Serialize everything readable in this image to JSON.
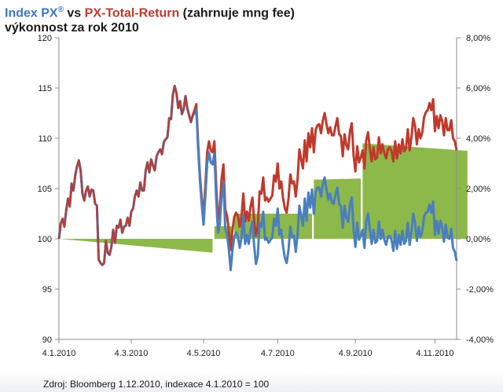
{
  "title": {
    "px_name": "Index PX",
    "px_reg": "®",
    "vs": " vs ",
    "tr_name": "PX-Total-Return",
    "tr_note": " (zahrnuje mng fee)",
    "line2": "výkonnost za rok 2010"
  },
  "source": "Zdroj: Bloomberg 1.12.2010, indexace 4.1.2010 = 100",
  "colors": {
    "px": "#4a7ebf",
    "tr": "#c0392b",
    "diff": "#8db84a",
    "axis": "#8c8c8c"
  },
  "chart_data": {
    "type": "line",
    "x_ticks": [
      "4.1.2010",
      "4.3.2010",
      "4.5.2010",
      "4.7.2010",
      "4.9.2010",
      "4.11.2010"
    ],
    "x_tick_index": [
      0,
      40,
      80,
      121,
      164,
      208
    ],
    "y_left": {
      "min": 90,
      "max": 120,
      "ticks": [
        90,
        95,
        100,
        105,
        110,
        115,
        120
      ]
    },
    "y_right": {
      "min": -4,
      "max": 8,
      "ticks": [
        "-4,00%",
        "-2,00%",
        "0,00%",
        "2,00%",
        "4,00%",
        "6,00%",
        "8,00%"
      ]
    },
    "series": [
      {
        "key": "px",
        "axis": "left",
        "values": [
          100.0,
          101.5,
          102.0,
          101.2,
          102.8,
          104.0,
          103.2,
          105.5,
          104.8,
          106.3,
          107.2,
          107.8,
          106.8,
          104.5,
          103.8,
          104.8,
          105.2,
          104.2,
          104.9,
          104.8,
          103.5,
          103.3,
          97.9,
          97.6,
          97.4,
          97.6,
          99.8,
          98.6,
          98.4,
          99.2,
          100.9,
          99.6,
          101.3,
          101.1,
          101.9,
          100.6,
          101.2,
          101.3,
          102.1,
          101.3,
          102.7,
          103.0,
          104.2,
          104.8,
          104.2,
          105.6,
          104.8,
          104.8,
          106.8,
          107.6,
          106.6,
          107.9,
          107.3,
          106.8,
          108.2,
          108.6,
          108.9,
          108.4,
          109.6,
          109.9,
          110.1,
          112.0,
          111.9,
          114.3,
          115.2,
          114.5,
          113.0,
          113.7,
          112.4,
          112.9,
          114.2,
          113.0,
          112.3,
          111.6,
          112.2,
          112.5,
          112.9,
          109.0,
          105.8,
          103.4,
          101.4,
          104.3,
          107.5,
          108.6,
          107.6,
          107.4,
          108.5,
          104.0,
          100.6,
          101.5,
          104.3,
          105.6,
          101.0,
          100.4,
          98.9,
          96.9,
          98.9,
          100.2,
          100.6,
          100.2,
          99.1,
          100.1,
          102.3,
          99.5,
          100.4,
          99.5,
          100.9,
          101.7,
          99.3,
          97.5,
          98.3,
          101.6,
          101.2,
          102.7,
          99.9,
          100.1,
          99.6,
          99.9,
          100.1,
          102.0,
          101.3,
          103.0,
          100.4,
          100.9,
          99.2,
          98.1,
          97.6,
          98.9,
          101.2,
          100.2,
          100.3,
          98.7,
          100.4,
          103.3,
          102.3,
          101.3,
          104.0,
          101.8,
          104.6,
          103.1,
          104.9,
          102.5,
          104.7,
          105.1,
          105.1,
          104.2,
          105.4,
          106.1,
          104.9,
          103.9,
          104.5,
          103.6,
          103.5,
          104.4,
          105.1,
          103.5,
          103.2,
          101.1,
          103.3,
          102.1,
          101.7,
          103.4,
          104.1,
          100.9,
          99.2,
          101.6,
          99.9,
          100.3,
          100.9,
          99.1,
          101.8,
          102.5,
          100.9,
          99.5,
          100.9,
          99.6,
          99.8,
          101.7,
          100.0,
          100.9,
          99.9,
          99.4,
          100.2,
          100.3,
          99.9,
          98.8,
          100.8,
          99.0,
          100.4,
          99.4,
          100.8,
          99.5,
          99.8,
          101.6,
          99.4,
          100.7,
          102.5,
          101.6,
          99.8,
          101.2,
          100.2,
          100.8,
          102.2,
          102.6,
          102.7,
          103.4,
          102.6,
          103.7,
          100.4,
          101.8,
          100.5,
          101.8,
          101.2,
          99.7,
          101.4,
          100.1,
          100.0,
          101.0,
          99.1,
          98.7,
          97.8
        ]
      },
      {
        "key": "tr",
        "axis": "left",
        "values": [
          100.0,
          101.5,
          102.0,
          101.2,
          102.8,
          104.0,
          103.2,
          105.5,
          104.8,
          106.3,
          107.2,
          107.8,
          106.8,
          104.5,
          103.8,
          104.8,
          105.2,
          104.2,
          104.9,
          104.8,
          103.5,
          103.3,
          97.9,
          97.6,
          97.4,
          97.6,
          99.8,
          98.6,
          98.4,
          99.2,
          100.9,
          99.6,
          101.3,
          101.1,
          101.9,
          100.6,
          101.2,
          101.3,
          102.1,
          101.3,
          102.7,
          103.0,
          104.2,
          104.8,
          104.2,
          105.6,
          104.8,
          104.8,
          106.8,
          107.6,
          106.6,
          107.9,
          107.3,
          106.8,
          108.2,
          108.6,
          108.9,
          108.4,
          109.6,
          109.9,
          110.1,
          112.0,
          111.9,
          114.3,
          115.2,
          114.5,
          113.0,
          113.7,
          112.4,
          112.9,
          114.2,
          113.0,
          112.3,
          111.6,
          112.3,
          112.8,
          113.4,
          109.5,
          106.3,
          104.0,
          102.3,
          105.3,
          108.6,
          109.7,
          108.8,
          108.6,
          109.7,
          105.3,
          101.9,
          103.1,
          106.0,
          107.4,
          102.9,
          102.3,
          100.8,
          98.9,
          100.9,
          102.2,
          102.6,
          102.3,
          101.2,
          102.2,
          104.5,
          101.7,
          102.7,
          101.8,
          103.2,
          104.1,
          101.8,
          100.3,
          101.2,
          104.7,
          104.5,
          106.1,
          103.8,
          104.1,
          103.7,
          104.0,
          104.3,
          106.3,
          105.7,
          107.5,
          105.0,
          105.7,
          104.0,
          103.0,
          102.6,
          104.0,
          106.4,
          105.5,
          105.7,
          104.2,
          105.9,
          108.9,
          107.9,
          107.0,
          109.8,
          107.7,
          110.5,
          109.1,
          111.0,
          108.6,
          110.8,
          111.3,
          111.4,
          110.5,
          111.8,
          112.5,
          111.4,
          110.5,
          111.1,
          110.3,
          110.3,
          111.2,
          112.0,
          110.4,
          110.2,
          108.2,
          110.4,
          109.3,
          108.9,
          110.7,
          111.5,
          108.3,
          106.7,
          109.2,
          107.6,
          108.1,
          108.8,
          107.0,
          109.8,
          110.6,
          109.0,
          107.7,
          109.1,
          107.9,
          108.1,
          110.1,
          108.5,
          109.4,
          108.5,
          108.0,
          108.9,
          109.1,
          108.7,
          107.7,
          109.7,
          108.0,
          109.4,
          108.5,
          109.9,
          108.7,
          109.0,
          110.9,
          108.8,
          110.1,
          112.0,
          111.2,
          109.4,
          110.9,
          110.0,
          110.6,
          112.1,
          112.6,
          112.8,
          113.5,
          112.8,
          113.9,
          110.7,
          112.2,
          111.0,
          112.3,
          111.7,
          110.3,
          112.0,
          110.8,
          110.8,
          111.8,
          110.0,
          109.7,
          108.8
        ]
      },
      {
        "key": "diff",
        "axis": "right",
        "type": "area",
        "segments": [
          {
            "from": 0,
            "to": 85,
            "start": 0.0,
            "end": -0.55
          },
          {
            "from": 86,
            "to": 96,
            "start": 0.5,
            "end": 0.5
          },
          {
            "from": 97,
            "to": 140,
            "start": 1.0,
            "end": 1.0
          },
          {
            "from": 141,
            "to": 167,
            "start": 2.35,
            "end": 2.4
          },
          {
            "from": 168,
            "to": 226,
            "start": 3.8,
            "end": 3.5
          }
        ]
      }
    ]
  }
}
